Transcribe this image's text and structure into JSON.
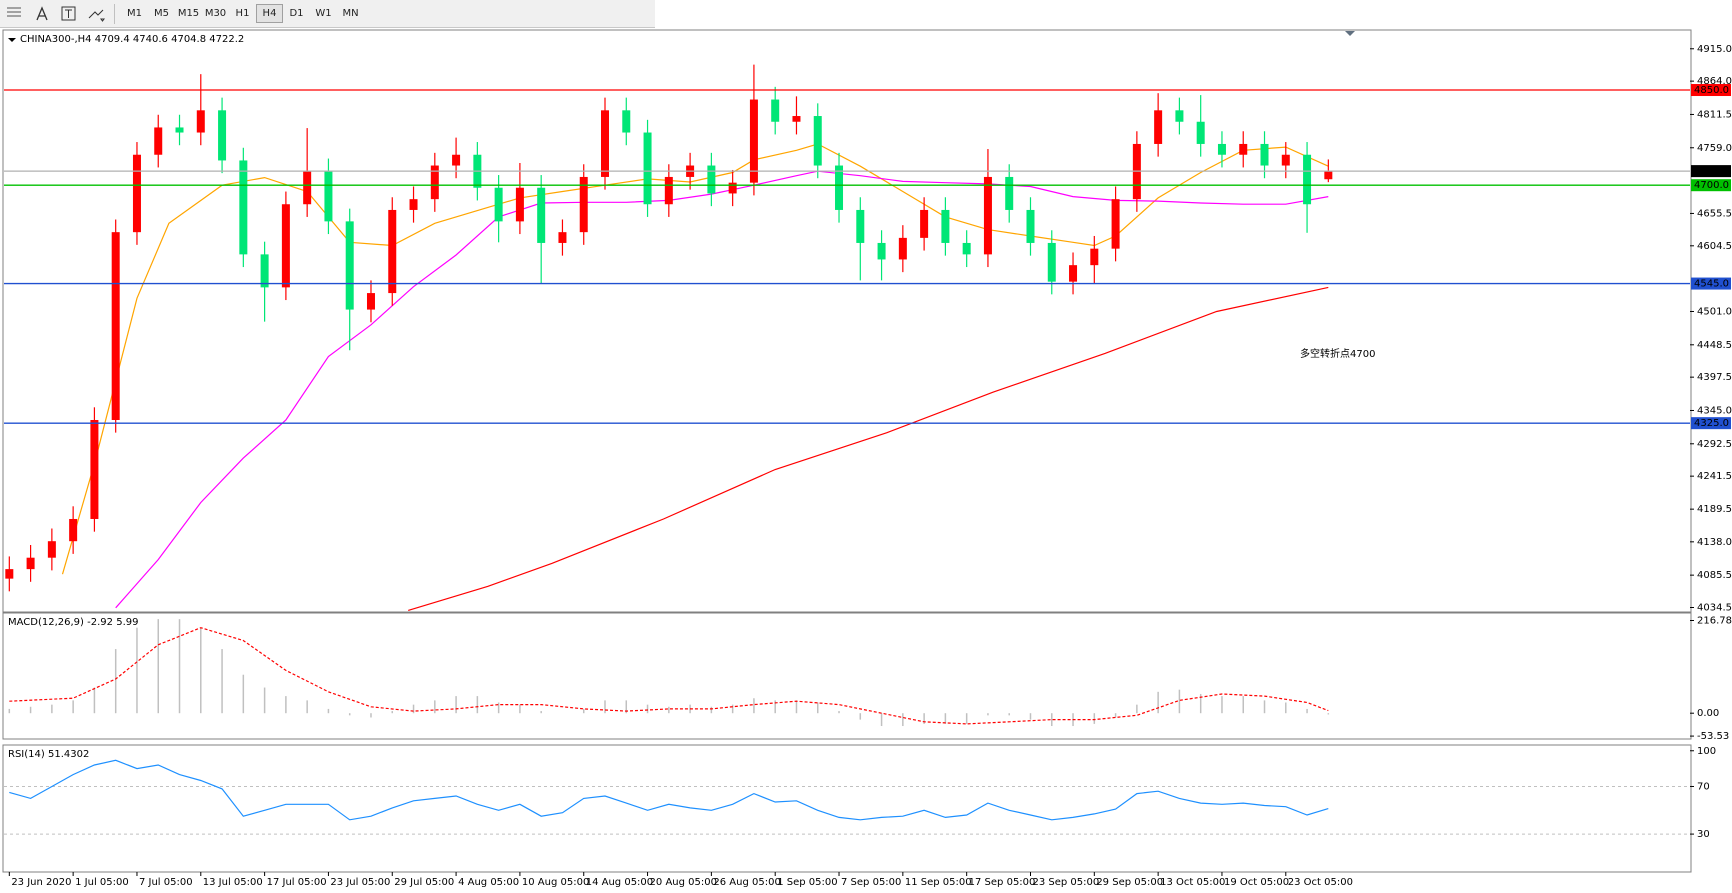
{
  "toolbar": {
    "timeframes": [
      "M1",
      "M5",
      "M15",
      "M30",
      "H1",
      "H4",
      "D1",
      "W1",
      "MN"
    ],
    "active": "H4"
  },
  "chart_data": [
    {
      "type": "candlestick",
      "symbol": "CHINA300-,H4",
      "up_color": "#ff0000",
      "down_color": "#00e676",
      "x": [
        0,
        4,
        8,
        12,
        16,
        20,
        24,
        28,
        32,
        36,
        40,
        44,
        48,
        52,
        56,
        60,
        64,
        68,
        72,
        76,
        80,
        84,
        88,
        92,
        96,
        100,
        104,
        108,
        112,
        116,
        120,
        124,
        128,
        132,
        136,
        140,
        144,
        148,
        152,
        156,
        160,
        164,
        168,
        172,
        176,
        180,
        184,
        188,
        192,
        196,
        200,
        204,
        208,
        212,
        216,
        220,
        224,
        228,
        232,
        236,
        240,
        244,
        248
      ],
      "open": [
        4080,
        4095,
        4113,
        4139,
        4174,
        4330,
        4626,
        4748,
        4791,
        4783,
        4818,
        4739,
        4591,
        4539,
        4670,
        4722,
        4643,
        4504,
        4530,
        4661,
        4678,
        4731,
        4748,
        4696,
        4643,
        4696,
        4609,
        4626,
        4713,
        4818,
        4783,
        4670,
        4713,
        4731,
        4687,
        4704,
        4835,
        4800,
        4809,
        4731,
        4661,
        4609,
        4583,
        4617,
        4661,
        4609,
        4591,
        4713,
        4661,
        4609,
        4548,
        4574,
        4600,
        4678,
        4765,
        4818,
        4800,
        4765,
        4748,
        4765,
        4731,
        4748,
        4709.4
      ],
      "high": [
        4115,
        4133,
        4159,
        4194,
        4350,
        4646,
        4768,
        4811,
        4811,
        4875,
        4838,
        4759,
        4611,
        4690,
        4790,
        4742,
        4663,
        4550,
        4681,
        4698,
        4751,
        4775,
        4768,
        4716,
        4735,
        4716,
        4646,
        4733,
        4838,
        4838,
        4803,
        4733,
        4751,
        4751,
        4724,
        4890,
        4855,
        4840,
        4829,
        4751,
        4681,
        4629,
        4637,
        4681,
        4681,
        4629,
        4757,
        4733,
        4681,
        4629,
        4594,
        4620,
        4698,
        4785,
        4845,
        4838,
        4842,
        4785,
        4785,
        4785,
        4768,
        4768,
        4740.6
      ],
      "low": [
        4060,
        4075,
        4093,
        4119,
        4154,
        4310,
        4606,
        4728,
        4763,
        4763,
        4719,
        4571,
        4485,
        4519,
        4650,
        4623,
        4440,
        4484,
        4510,
        4641,
        4658,
        4711,
        4676,
        4610,
        4623,
        4545,
        4589,
        4606,
        4693,
        4763,
        4650,
        4650,
        4693,
        4667,
        4667,
        4684,
        4780,
        4780,
        4711,
        4641,
        4550,
        4550,
        4563,
        4597,
        4589,
        4571,
        4571,
        4641,
        4589,
        4528,
        4528,
        4545,
        4580,
        4658,
        4745,
        4780,
        4745,
        4728,
        4728,
        4711,
        4711,
        4625,
        4704.8
      ],
      "close": [
        4095,
        4113,
        4139,
        4174,
        4330,
        4626,
        4748,
        4791,
        4783,
        4818,
        4739,
        4591,
        4539,
        4670,
        4722,
        4643,
        4504,
        4530,
        4661,
        4678,
        4731,
        4748,
        4696,
        4643,
        4696,
        4609,
        4626,
        4713,
        4818,
        4783,
        4670,
        4713,
        4731,
        4687,
        4704,
        4835,
        4800,
        4809,
        4731,
        4661,
        4609,
        4583,
        4617,
        4661,
        4609,
        4591,
        4713,
        4661,
        4609,
        4548,
        4574,
        4600,
        4678,
        4765,
        4818,
        4800,
        4765,
        4748,
        4765,
        4731,
        4748,
        4670,
        4722.2
      ],
      "series": [
        {
          "color": "#ffa500",
          "x": [
            10,
            16,
            24,
            30,
            40,
            48,
            56,
            64,
            72,
            80,
            88,
            96,
            104,
            112,
            120,
            128,
            136,
            140,
            148,
            152,
            160,
            168,
            176,
            184,
            192,
            200,
            204,
            208,
            216,
            224,
            232,
            240,
            248
          ],
          "values": [
            4087,
            4261,
            4522,
            4640,
            4700,
            4712,
            4690,
            4610,
            4605,
            4640,
            4660,
            4680,
            4690,
            4700,
            4710,
            4705,
            4720,
            4740,
            4755,
            4765,
            4730,
            4690,
            4650,
            4630,
            4620,
            4610,
            4605,
            4620,
            4680,
            4720,
            4755,
            4760,
            4730
          ]
        },
        {
          "color": "#ff00ff",
          "x": [
            20,
            28,
            36,
            44,
            52,
            60,
            68,
            76,
            84,
            92,
            100,
            108,
            116,
            124,
            132,
            140,
            148,
            152,
            160,
            168,
            176,
            184,
            192,
            200,
            208,
            216,
            224,
            232,
            240,
            248
          ],
          "values": [
            4034,
            4110,
            4200,
            4270,
            4330,
            4430,
            4480,
            4540,
            4590,
            4650,
            4672,
            4673,
            4673,
            4676,
            4686,
            4700,
            4715,
            4722,
            4715,
            4706,
            4704,
            4702,
            4698,
            4682,
            4676,
            4675,
            4672,
            4670,
            4670,
            4682
          ]
        },
        {
          "color": "#ff0000",
          "x": [
            75,
            90,
            102,
            123,
            144,
            165,
            185,
            206,
            227,
            248
          ],
          "values": [
            4030,
            4068,
            4104,
            4174,
            4252,
            4310,
            4374,
            4435,
            4501,
            4539
          ]
        }
      ],
      "lines": [
        {
          "value": 4850,
          "label": "4850.0",
          "color": "#ff0000"
        },
        {
          "value": 4722.2,
          "color": "#b0b0b0",
          "label_color": "#000000"
        },
        {
          "value": 4700,
          "label": "4700.0",
          "color": "#00c000"
        },
        {
          "value": 4545,
          "label": "4545.0",
          "color": "#2050d0"
        },
        {
          "value": 4325,
          "label": "4325.0",
          "color": "#2050d0"
        }
      ],
      "annotation": {
        "text": "多空转折点4700",
        "color": "#ff0000"
      },
      "xlim": [
        -1,
        316
      ],
      "xticks": [
        {
          "value": 0,
          "label": "23 Jun 2020"
        },
        {
          "value": 12,
          "label": "1 Jul 05:00"
        },
        {
          "value": 24,
          "label": "7 Jul 05:00"
        },
        {
          "value": 36,
          "label": "13 Jul 05:00"
        },
        {
          "value": 48,
          "label": "17 Jul 05:00"
        },
        {
          "value": 60,
          "label": "23 Jul 05:00"
        },
        {
          "value": 72,
          "label": "29 Jul 05:00"
        },
        {
          "value": 84,
          "label": "4 Aug 05:00"
        },
        {
          "value": 96,
          "label": "10 Aug 05:00"
        },
        {
          "value": 108,
          "label": "14 Aug 05:00"
        },
        {
          "value": 120,
          "label": "20 Aug 05:00"
        },
        {
          "value": 132,
          "label": "26 Aug 05:00"
        },
        {
          "value": 144,
          "label": "1 Sep 05:00"
        },
        {
          "value": 156,
          "label": "7 Sep 05:00"
        },
        {
          "value": 168,
          "label": "11 Sep 05:00"
        },
        {
          "value": 180,
          "label": "17 Sep 05:00"
        },
        {
          "value": 192,
          "label": "23 Sep 05:00"
        },
        {
          "value": 204,
          "label": "29 Sep 05:00"
        },
        {
          "value": 216,
          "label": "13 Oct 05:00"
        },
        {
          "value": 228,
          "label": "19 Oct 05:00"
        },
        {
          "value": 240,
          "label": "23 Oct 05:00"
        }
      ],
      "ylim": [
        4029,
        4943
      ],
      "yticks": [
        {
          "value": 4915,
          "label": "4915.0"
        },
        {
          "value": 4864,
          "label": "4864.0"
        },
        4811.5,
        {
          "value": 4759,
          "label": "4759.0"
        },
        4655.5,
        4604.5,
        {
          "value": 4501,
          "label": "4501.0"
        },
        4448.5,
        4397.5,
        {
          "value": 4345,
          "label": "4345.0"
        },
        4292.5,
        4241.5,
        4189.5,
        {
          "value": 4138,
          "label": "4138.0"
        },
        4085.5,
        4034.5
      ]
    },
    {
      "type": "macd",
      "label": "MACD(12,26,9)",
      "x": [
        0,
        4,
        8,
        12,
        16,
        20,
        24,
        28,
        32,
        36,
        40,
        44,
        48,
        52,
        56,
        60,
        64,
        68,
        72,
        76,
        80,
        84,
        88,
        92,
        96,
        100,
        104,
        108,
        112,
        116,
        120,
        124,
        128,
        132,
        136,
        140,
        144,
        148,
        152,
        156,
        160,
        164,
        168,
        172,
        176,
        180,
        184,
        188,
        192,
        196,
        200,
        204,
        208,
        212,
        216,
        220,
        224,
        228,
        232,
        236,
        240,
        244,
        248
      ],
      "histogram": {
        "color": "#c0c0c0",
        "values": [
          10,
          15,
          20,
          30,
          60,
          150,
          200,
          220,
          220,
          200,
          150,
          90,
          60,
          40,
          30,
          10,
          -5,
          -10,
          5,
          20,
          30,
          40,
          40,
          25,
          20,
          5,
          0,
          10,
          30,
          30,
          20,
          15,
          20,
          15,
          20,
          35,
          30,
          30,
          25,
          5,
          -15,
          -30,
          -30,
          -25,
          -25,
          -25,
          -5,
          -5,
          -15,
          -30,
          -30,
          -25,
          -10,
          20,
          50,
          55,
          45,
          40,
          40,
          30,
          25,
          10,
          -2.92
        ]
      },
      "signal": {
        "color": "#ff0000",
        "x": [
          0,
          12,
          20,
          28,
          36,
          44,
          52,
          60,
          68,
          76,
          84,
          92,
          100,
          108,
          116,
          124,
          132,
          140,
          148,
          156,
          164,
          172,
          180,
          188,
          196,
          204,
          212,
          220,
          228,
          236,
          244,
          248
        ],
        "values": [
          28,
          35,
          80,
          160,
          200,
          170,
          100,
          50,
          15,
          5,
          10,
          20,
          20,
          10,
          5,
          10,
          10,
          20,
          28,
          20,
          0,
          -20,
          -25,
          -20,
          -15,
          -15,
          -5,
          30,
          45,
          40,
          25,
          5.99
        ]
      },
      "ylim": [
        -58,
        232
      ],
      "yticks": [
        216.78,
        {
          "value": 0,
          "label": "0.00"
        },
        -53.53
      ]
    },
    {
      "type": "rsi",
      "label": "RSI(14)",
      "color": "#1e90ff",
      "x": [
        0,
        4,
        8,
        12,
        16,
        20,
        24,
        28,
        32,
        36,
        40,
        44,
        48,
        52,
        56,
        60,
        64,
        68,
        72,
        76,
        80,
        84,
        88,
        92,
        96,
        100,
        104,
        108,
        112,
        116,
        120,
        124,
        128,
        132,
        136,
        140,
        144,
        148,
        152,
        156,
        160,
        164,
        168,
        172,
        176,
        180,
        184,
        188,
        192,
        196,
        200,
        204,
        208,
        212,
        216,
        220,
        224,
        228,
        232,
        236,
        240,
        244,
        248
      ],
      "values": [
        65,
        60,
        70,
        80,
        88,
        92,
        85,
        88,
        80,
        75,
        68,
        45,
        50,
        55,
        55,
        55,
        42,
        45,
        52,
        58,
        60,
        62,
        55,
        50,
        55,
        45,
        48,
        60,
        62,
        56,
        50,
        55,
        52,
        50,
        55,
        64,
        57,
        58,
        50,
        44,
        42,
        44,
        45,
        50,
        44,
        46,
        56,
        50,
        46,
        42,
        44,
        47,
        51,
        64,
        66,
        60,
        56,
        55,
        56,
        54,
        53,
        46,
        51.4302
      ],
      "levels": [
        70,
        30
      ],
      "ylim": [
        -1,
        104
      ],
      "yticks": [
        100,
        70,
        30
      ]
    }
  ]
}
